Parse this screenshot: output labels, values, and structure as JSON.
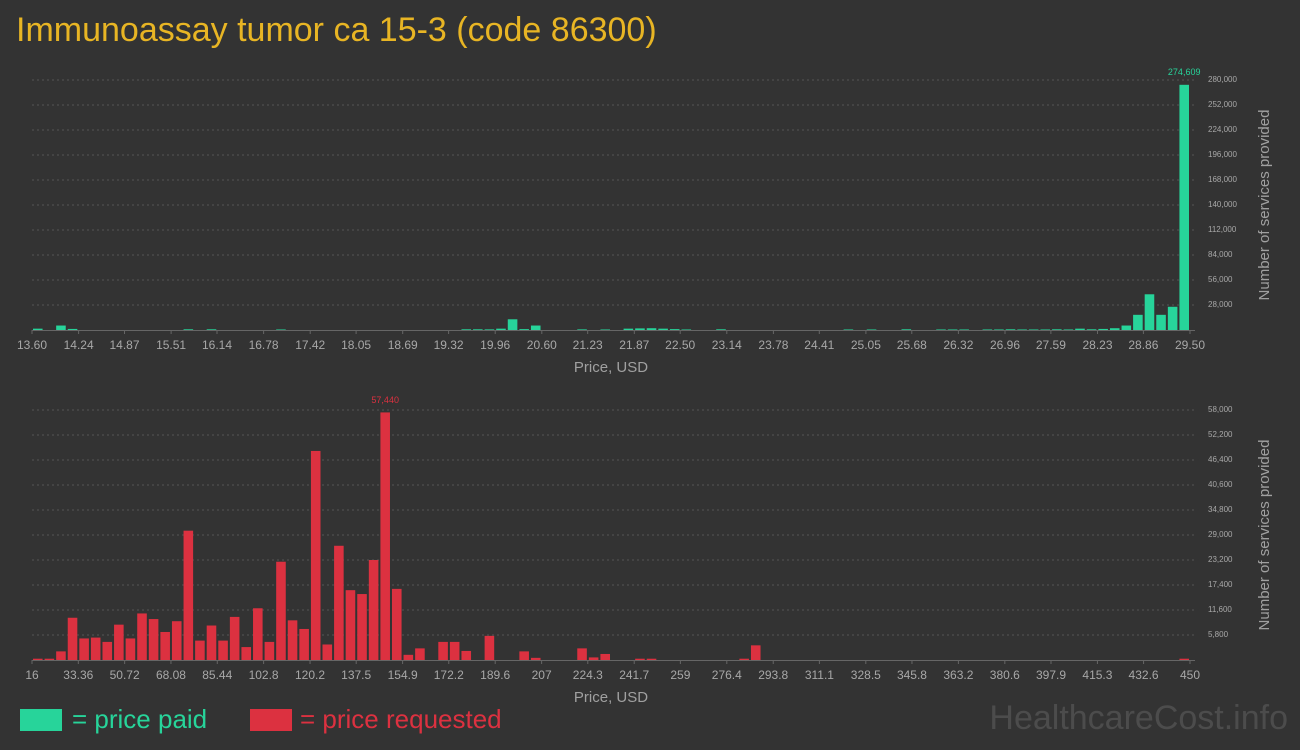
{
  "title": "Immunoassay tumor ca 15-3 (code 86300)",
  "watermark": "HealthcareCost.info",
  "chart_data": [
    {
      "type": "histogram",
      "x_label": "Price, USD",
      "y_label": "Number of services provided",
      "bins": [
        13.6,
        13.759,
        13.918,
        14.077,
        14.236,
        14.395,
        14.554,
        14.713,
        14.872,
        15.031,
        15.19,
        15.349,
        15.508,
        15.667,
        15.826,
        15.985,
        16.144,
        16.303,
        16.462,
        16.621,
        16.78,
        16.939,
        17.098,
        17.257,
        17.416,
        17.575,
        17.734,
        17.893,
        18.052,
        18.211,
        18.37,
        18.529,
        18.688,
        18.847,
        19.006,
        19.165,
        19.324,
        19.483,
        19.642,
        19.801,
        19.96,
        20.119,
        20.278,
        20.437,
        20.596,
        20.755,
        20.914,
        21.073,
        21.232,
        21.391,
        21.55,
        21.709,
        21.868,
        22.027,
        22.186,
        22.345,
        22.504,
        22.663,
        22.822,
        22.981,
        23.14,
        23.299,
        23.458,
        23.617,
        23.776,
        23.935,
        24.094,
        24.253,
        24.412,
        24.571,
        24.73,
        24.889,
        25.048,
        25.207,
        25.366,
        25.525,
        25.684,
        25.843,
        26.002,
        26.161,
        26.32,
        26.479,
        26.638,
        26.797,
        26.956,
        27.115,
        27.274,
        27.433,
        27.592,
        27.751,
        27.91,
        28.069,
        28.228,
        28.387,
        28.546,
        28.705,
        28.864,
        29.023,
        29.182,
        29.341,
        29.5
      ],
      "series": [
        {
          "name": "= price paid",
          "color": "#27d49a",
          "values": [
            1500,
            0,
            5000,
            1200,
            0,
            0,
            0,
            0,
            0,
            0,
            0,
            0,
            0,
            800,
            0,
            800,
            0,
            0,
            0,
            0,
            0,
            600,
            0,
            0,
            0,
            0,
            0,
            0,
            0,
            0,
            0,
            0,
            0,
            0,
            0,
            0,
            0,
            800,
            800,
            700,
            1500,
            12000,
            1000,
            5000,
            0,
            0,
            0,
            700,
            0,
            600,
            0,
            1500,
            1800,
            2000,
            1500,
            1000,
            600,
            0,
            0,
            800,
            0,
            0,
            0,
            0,
            0,
            0,
            0,
            0,
            0,
            0,
            600,
            0,
            600,
            0,
            0,
            800,
            0,
            0,
            600,
            600,
            600,
            0,
            600,
            600,
            800,
            600,
            600,
            600,
            800,
            600,
            1500,
            800,
            1200,
            2000,
            5000,
            17000,
            40000,
            17000,
            26000,
            274609
          ],
          "value_labels": [
            null,
            null,
            null,
            null,
            null,
            null,
            null,
            null,
            null,
            null,
            null,
            null,
            null,
            null,
            null,
            null,
            null,
            null,
            null,
            null,
            null,
            null,
            null,
            null,
            null,
            null,
            null,
            null,
            null,
            null,
            null,
            null,
            null,
            null,
            null,
            null,
            null,
            null,
            null,
            null,
            null,
            null,
            null,
            null,
            null,
            null,
            null,
            null,
            null,
            null,
            null,
            null,
            null,
            null,
            null,
            null,
            null,
            null,
            null,
            null,
            null,
            null,
            null,
            null,
            null,
            null,
            null,
            null,
            null,
            null,
            null,
            null,
            null,
            null,
            null,
            null,
            null,
            null,
            null,
            null,
            null,
            null,
            null,
            null,
            null,
            null,
            null,
            null,
            null,
            null,
            null,
            null,
            null,
            null,
            null,
            null,
            null,
            null,
            null,
            "274,609"
          ]
        }
      ],
      "xlim": [
        13.6,
        29.5
      ],
      "xticks": [
        {
          "value": 13.6,
          "label": "13.60"
        },
        14.24,
        14.87,
        15.51,
        16.14,
        16.78,
        17.42,
        18.05,
        18.69,
        19.32,
        19.96,
        {
          "value": 20.6,
          "label": "20.60"
        },
        21.23,
        21.87,
        {
          "value": 22.5,
          "label": "22.50"
        },
        23.14,
        23.78,
        24.41,
        25.05,
        25.68,
        26.32,
        26.96,
        27.59,
        28.23,
        28.86,
        {
          "value": 29.5,
          "label": "29.50"
        }
      ],
      "ylim": [
        0,
        280000
      ],
      "yticks": [
        {
          "value": 28000,
          "label": "28,000"
        },
        {
          "value": 56000,
          "label": "56,000"
        },
        {
          "value": 84000,
          "label": "84,000"
        },
        {
          "value": 112000,
          "label": "112,000"
        },
        {
          "value": 140000,
          "label": "140,000"
        },
        {
          "value": 168000,
          "label": "168,000"
        },
        {
          "value": 196000,
          "label": "196,000"
        },
        {
          "value": 224000,
          "label": "224,000"
        },
        {
          "value": 252000,
          "label": "252,000"
        },
        {
          "value": 280000,
          "label": "280,000"
        }
      ],
      "grid": true
    },
    {
      "type": "histogram",
      "x_label": "Price, USD",
      "y_label": "Number of services provided",
      "bins": [
        16,
        20.34,
        24.68,
        29.02,
        33.36,
        37.7,
        42.04,
        46.38,
        50.72,
        55.06,
        59.4,
        63.74,
        68.08,
        72.42,
        76.76,
        81.1,
        85.44,
        89.78,
        94.12,
        98.46,
        102.8,
        107.14,
        111.48,
        115.82,
        120.16,
        124.5,
        128.84,
        133.18,
        137.52,
        141.86,
        146.2,
        150.54,
        154.88,
        159.22,
        163.56,
        167.9,
        172.24,
        176.58,
        180.92,
        185.26,
        189.6,
        193.94,
        198.28,
        202.62,
        206.96,
        211.3,
        215.64,
        219.98,
        224.32,
        228.66,
        233,
        237.34,
        241.68,
        246.02,
        250.36,
        254.7,
        259.04,
        263.38,
        267.72,
        272.06,
        276.4,
        280.74,
        285.08,
        289.42,
        293.76,
        298.1,
        302.44,
        306.78,
        311.12,
        315.46,
        319.8,
        324.14,
        328.48,
        332.82,
        337.16,
        341.5,
        345.84,
        350.18,
        354.52,
        358.86,
        363.2,
        367.54,
        371.88,
        376.22,
        380.56,
        384.9,
        389.24,
        393.58,
        397.92,
        402.26,
        406.6,
        410.94,
        415.28,
        419.62,
        423.96,
        428.3,
        432.64,
        436.98,
        441.32,
        445.66,
        450
      ],
      "series": [
        {
          "name": "= price requested",
          "color": "#dc3140",
          "values": [
            300,
            300,
            2000,
            9800,
            5000,
            5200,
            4200,
            8200,
            5000,
            10800,
            9500,
            6500,
            9000,
            30000,
            4500,
            8000,
            4500,
            10000,
            3000,
            12000,
            4200,
            22800,
            9200,
            7200,
            48500,
            3600,
            26500,
            16200,
            15300,
            23200,
            57440,
            16500,
            1200,
            2700,
            0,
            4200,
            4200,
            2100,
            0,
            5600,
            0,
            0,
            2000,
            500,
            0,
            0,
            0,
            2700,
            600,
            1400,
            0,
            0,
            300,
            300,
            0,
            0,
            0,
            0,
            0,
            0,
            0,
            300,
            3400,
            0,
            0,
            0,
            0,
            0,
            0,
            0,
            0,
            0,
            0,
            0,
            0,
            0,
            0,
            0,
            0,
            0,
            0,
            0,
            0,
            0,
            0,
            0,
            0,
            0,
            0,
            0,
            0,
            0,
            0,
            0,
            0,
            0,
            0,
            0,
            0,
            300
          ],
          "value_labels": [
            null,
            null,
            null,
            null,
            null,
            null,
            null,
            null,
            null,
            null,
            null,
            null,
            null,
            null,
            null,
            null,
            null,
            null,
            null,
            null,
            null,
            null,
            null,
            null,
            null,
            null,
            null,
            null,
            null,
            null,
            "57,440",
            null,
            null,
            null,
            null,
            null,
            null,
            null,
            null,
            null,
            null,
            null,
            null,
            null,
            null,
            null,
            null,
            null,
            null,
            null,
            null,
            null,
            null,
            null,
            null,
            null,
            null,
            null,
            null,
            null,
            null,
            null,
            null,
            null,
            null,
            null,
            null,
            null,
            null,
            null,
            null,
            null,
            null,
            null,
            null,
            null,
            null,
            null,
            null,
            null,
            null,
            null,
            null,
            null,
            null,
            null,
            null,
            null,
            null,
            null,
            null,
            null,
            null,
            null,
            null,
            null,
            null,
            null,
            null,
            null
          ]
        }
      ],
      "xlim": [
        16,
        450
      ],
      "xticks": [
        16,
        33.36,
        50.72,
        68.08,
        85.44,
        102.8,
        120.2,
        137.5,
        154.9,
        172.2,
        189.6,
        207,
        224.3,
        241.7,
        259,
        276.4,
        293.8,
        311.1,
        328.5,
        345.8,
        363.2,
        380.6,
        397.9,
        415.3,
        432.6,
        450
      ],
      "ylim": [
        0,
        58000
      ],
      "yticks": [
        {
          "value": 5800,
          "label": "5,800"
        },
        {
          "value": 11600,
          "label": "11,600"
        },
        {
          "value": 17400,
          "label": "17,400"
        },
        {
          "value": 23200,
          "label": "23,200"
        },
        {
          "value": 29000,
          "label": "29,000"
        },
        {
          "value": 34800,
          "label": "34,800"
        },
        {
          "value": 40600,
          "label": "40,600"
        },
        {
          "value": 46400,
          "label": "46,400"
        },
        {
          "value": 52200,
          "label": "52,200"
        },
        {
          "value": 58000,
          "label": "58,000"
        }
      ],
      "grid": true
    }
  ]
}
